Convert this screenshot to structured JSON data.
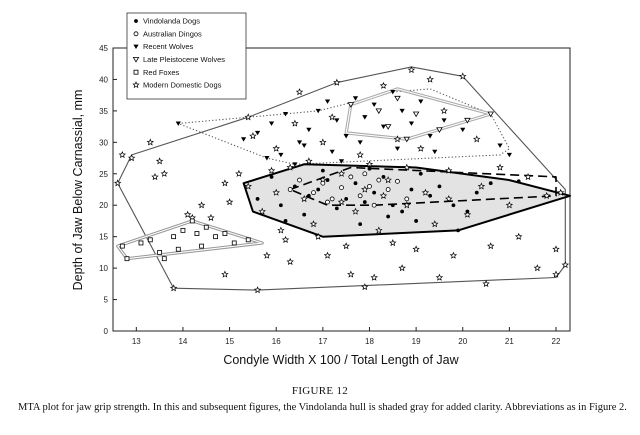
{
  "figure": {
    "title": "FIGURE 12",
    "caption": "MTA plot for jaw grip strength. In this and subsequent figures, the Vindolanda hull is shaded gray for added clarity.  Abbreviations as in Figure 2."
  },
  "chart_data": {
    "type": "scatter",
    "xlabel": "Condyle Width X 100 / Total Length of Jaw",
    "ylabel": "Depth of Jaw Below Carnassial, mm",
    "xlim": [
      12.5,
      22.3
    ],
    "ylim": [
      0,
      45
    ],
    "xticks": [
      "13",
      "14",
      "15",
      "16",
      "17",
      "18",
      "19",
      "20",
      "21",
      "22"
    ],
    "yticks": [
      "0",
      "5",
      "10",
      "15",
      "20",
      "25",
      "30",
      "35",
      "40",
      "45"
    ],
    "legend_position": "top-left",
    "series": [
      {
        "name": "Vindolanda Dogs",
        "marker": "filled-circle",
        "color": "#000000",
        "points": [
          [
            15.6,
            21.0
          ],
          [
            15.9,
            24.5
          ],
          [
            16.1,
            20.0
          ],
          [
            16.4,
            23.0
          ],
          [
            16.7,
            21.5
          ],
          [
            16.9,
            22.5
          ],
          [
            17.1,
            24.0
          ],
          [
            17.3,
            19.5
          ],
          [
            17.5,
            21.0
          ],
          [
            17.7,
            23.5
          ],
          [
            17.9,
            20.5
          ],
          [
            18.1,
            22.0
          ],
          [
            18.3,
            24.5
          ],
          [
            18.5,
            20.0
          ],
          [
            18.7,
            19.0
          ],
          [
            18.9,
            22.5
          ],
          [
            19.1,
            25.0
          ],
          [
            19.3,
            21.5
          ],
          [
            19.5,
            23.0
          ],
          [
            19.8,
            20.0
          ],
          [
            20.1,
            19.0
          ],
          [
            20.3,
            22.0
          ],
          [
            20.6,
            23.5
          ],
          [
            17.0,
            25.5
          ],
          [
            18.0,
            25.8
          ],
          [
            16.6,
            18.5
          ],
          [
            17.8,
            17.0
          ],
          [
            19.0,
            17.5
          ],
          [
            19.9,
            16.0
          ],
          [
            21.2,
            23.8
          ],
          [
            16.2,
            17.5
          ],
          [
            18.4,
            18.2
          ]
        ]
      },
      {
        "name": "Australian Dingos",
        "marker": "open-circle",
        "color": "#000000",
        "points": [
          [
            16.5,
            24.0
          ],
          [
            16.8,
            22.0
          ],
          [
            17.0,
            23.5
          ],
          [
            17.2,
            21.0
          ],
          [
            17.4,
            22.8
          ],
          [
            17.6,
            24.5
          ],
          [
            17.8,
            21.5
          ],
          [
            18.0,
            23.0
          ],
          [
            18.2,
            24.0
          ],
          [
            18.4,
            22.5
          ],
          [
            18.6,
            23.8
          ],
          [
            18.8,
            21.0
          ],
          [
            16.3,
            22.5
          ],
          [
            17.1,
            20.5
          ],
          [
            17.9,
            25.0
          ],
          [
            18.1,
            20.0
          ]
        ]
      },
      {
        "name": "Recent Wolves",
        "marker": "filled-triangle-down",
        "color": "#000000",
        "points": [
          [
            13.9,
            33.0
          ],
          [
            15.3,
            30.5
          ],
          [
            15.6,
            31.5
          ],
          [
            15.9,
            33.0
          ],
          [
            16.2,
            34.5
          ],
          [
            16.5,
            30.0
          ],
          [
            16.7,
            32.0
          ],
          [
            16.9,
            35.0
          ],
          [
            17.1,
            36.5
          ],
          [
            17.3,
            33.5
          ],
          [
            17.5,
            31.0
          ],
          [
            17.7,
            37.0
          ],
          [
            17.9,
            34.0
          ],
          [
            18.1,
            36.0
          ],
          [
            18.3,
            32.5
          ],
          [
            18.5,
            38.0
          ],
          [
            18.7,
            35.0
          ],
          [
            18.9,
            33.0
          ],
          [
            19.1,
            36.5
          ],
          [
            19.3,
            31.0
          ],
          [
            19.6,
            33.5
          ],
          [
            20.0,
            32.0
          ],
          [
            16.1,
            28.0
          ],
          [
            16.6,
            29.5
          ],
          [
            17.2,
            28.5
          ],
          [
            17.8,
            30.0
          ],
          [
            18.6,
            29.0
          ],
          [
            19.4,
            28.5
          ],
          [
            15.8,
            27.5
          ],
          [
            16.4,
            26.5
          ],
          [
            17.4,
            27.0
          ],
          [
            20.8,
            29.5
          ],
          [
            21.0,
            28.0
          ]
        ]
      },
      {
        "name": "Late Pleistocene Wolves",
        "marker": "open-triangle-down",
        "color": "#000000",
        "points": [
          [
            17.6,
            36.0
          ],
          [
            18.2,
            35.0
          ],
          [
            18.6,
            37.0
          ],
          [
            19.0,
            34.5
          ],
          [
            19.5,
            32.0
          ],
          [
            20.1,
            33.5
          ],
          [
            20.6,
            34.5
          ],
          [
            18.8,
            30.5
          ],
          [
            18.4,
            32.5
          ]
        ]
      },
      {
        "name": "Red Foxes",
        "marker": "open-square",
        "color": "#000000",
        "points": [
          [
            12.7,
            13.5
          ],
          [
            12.8,
            11.5
          ],
          [
            13.1,
            14.0
          ],
          [
            13.3,
            14.5
          ],
          [
            13.5,
            12.5
          ],
          [
            13.8,
            15.0
          ],
          [
            14.0,
            16.0
          ],
          [
            14.2,
            17.5
          ],
          [
            14.3,
            15.5
          ],
          [
            14.5,
            16.5
          ],
          [
            14.7,
            15.0
          ],
          [
            14.9,
            15.5
          ],
          [
            15.1,
            14.0
          ],
          [
            13.6,
            11.5
          ],
          [
            14.4,
            13.5
          ],
          [
            13.9,
            13.0
          ],
          [
            15.4,
            14.5
          ]
        ]
      },
      {
        "name": "Modern Domestic Dogs",
        "marker": "open-star",
        "color": "#000000",
        "points": [
          [
            12.6,
            23.5
          ],
          [
            12.7,
            28.0
          ],
          [
            12.9,
            27.5
          ],
          [
            13.3,
            30.0
          ],
          [
            13.4,
            24.5
          ],
          [
            13.6,
            25.0
          ],
          [
            13.5,
            27.0
          ],
          [
            13.8,
            6.8
          ],
          [
            14.1,
            18.5
          ],
          [
            14.2,
            18.0
          ],
          [
            14.4,
            20.0
          ],
          [
            14.6,
            18.0
          ],
          [
            14.9,
            23.5
          ],
          [
            15.0,
            20.5
          ],
          [
            14.9,
            9.0
          ],
          [
            15.2,
            25.0
          ],
          [
            15.4,
            34.0
          ],
          [
            15.5,
            31.0
          ],
          [
            15.6,
            6.5
          ],
          [
            15.7,
            19.0
          ],
          [
            15.8,
            12.0
          ],
          [
            16.0,
            29.0
          ],
          [
            16.1,
            16.0
          ],
          [
            16.2,
            14.5
          ],
          [
            16.3,
            11.0
          ],
          [
            16.4,
            33.0
          ],
          [
            16.5,
            38.0
          ],
          [
            16.7,
            27.0
          ],
          [
            16.8,
            17.0
          ],
          [
            16.9,
            15.0
          ],
          [
            17.0,
            30.0
          ],
          [
            17.1,
            12.0
          ],
          [
            17.2,
            34.0
          ],
          [
            17.3,
            39.5
          ],
          [
            17.4,
            25.0
          ],
          [
            17.5,
            13.5
          ],
          [
            17.6,
            9.0
          ],
          [
            17.7,
            19.0
          ],
          [
            17.8,
            28.0
          ],
          [
            17.9,
            7.0
          ],
          [
            18.0,
            26.5
          ],
          [
            18.1,
            8.5
          ],
          [
            18.2,
            16.0
          ],
          [
            18.3,
            39.0
          ],
          [
            18.4,
            24.0
          ],
          [
            18.5,
            14.0
          ],
          [
            18.6,
            30.5
          ],
          [
            18.7,
            10.0
          ],
          [
            18.8,
            26.0
          ],
          [
            18.9,
            41.5
          ],
          [
            19.0,
            13.0
          ],
          [
            19.1,
            29.0
          ],
          [
            19.3,
            40.0
          ],
          [
            19.4,
            17.0
          ],
          [
            19.5,
            8.5
          ],
          [
            19.6,
            35.0
          ],
          [
            19.7,
            25.5
          ],
          [
            19.8,
            12.0
          ],
          [
            20.0,
            40.5
          ],
          [
            20.1,
            18.5
          ],
          [
            20.3,
            30.5
          ],
          [
            20.4,
            23.0
          ],
          [
            20.5,
            7.5
          ],
          [
            20.6,
            13.5
          ],
          [
            20.8,
            26.0
          ],
          [
            21.0,
            20.0
          ],
          [
            21.2,
            15.0
          ],
          [
            21.4,
            24.5
          ],
          [
            21.6,
            10.0
          ],
          [
            21.8,
            21.5
          ],
          [
            22.0,
            9.0
          ],
          [
            22.1,
            22.0
          ],
          [
            22.2,
            10.5
          ],
          [
            22.0,
            13.0
          ],
          [
            16.0,
            22.0
          ],
          [
            16.6,
            21.0
          ],
          [
            17.0,
            24.0
          ],
          [
            17.4,
            20.5
          ],
          [
            17.9,
            22.5
          ],
          [
            18.3,
            21.5
          ],
          [
            18.8,
            20.0
          ],
          [
            19.2,
            22.0
          ],
          [
            19.7,
            21.0
          ],
          [
            16.3,
            26.0
          ],
          [
            15.4,
            23.0
          ],
          [
            15.9,
            25.5
          ]
        ]
      }
    ],
    "hulls": [
      {
        "group": "Modern Domestic Dogs",
        "stroke": "#555555",
        "style": "solid",
        "points": [
          [
            12.6,
            23.5
          ],
          [
            12.9,
            28.0
          ],
          [
            15.4,
            34.0
          ],
          [
            17.3,
            39.5
          ],
          [
            18.9,
            42.0
          ],
          [
            20.0,
            40.5
          ],
          [
            22.2,
            22.5
          ],
          [
            22.2,
            10.5
          ],
          [
            22.0,
            8.5
          ],
          [
            15.6,
            6.5
          ],
          [
            13.8,
            6.8
          ]
        ]
      },
      {
        "group": "Recent Wolves",
        "stroke": "#555555",
        "style": "dotted",
        "points": [
          [
            13.9,
            33.0
          ],
          [
            16.9,
            35.0
          ],
          [
            18.5,
            38.0
          ],
          [
            19.3,
            38.5
          ],
          [
            20.6,
            34.5
          ],
          [
            21.0,
            29.0
          ],
          [
            20.8,
            28.0
          ],
          [
            16.4,
            26.5
          ],
          [
            15.8,
            27.5
          ]
        ]
      },
      {
        "group": "Late Pleistocene Wolves",
        "stroke": "#aaaaaa",
        "style": "double",
        "points": [
          [
            17.6,
            36.0
          ],
          [
            18.6,
            38.5
          ],
          [
            20.6,
            34.5
          ],
          [
            18.8,
            30.5
          ],
          [
            17.5,
            31.5
          ]
        ]
      },
      {
        "group": "Vindolanda Dogs",
        "stroke": "#000000",
        "style": "solid",
        "shaded": true,
        "fill": "#e3e3e3",
        "points": [
          [
            15.3,
            23.5
          ],
          [
            16.6,
            26.5
          ],
          [
            19.0,
            26.0
          ],
          [
            21.0,
            24.0
          ],
          [
            22.3,
            21.5
          ],
          [
            19.9,
            16.0
          ],
          [
            17.0,
            15.0
          ],
          [
            15.5,
            19.0
          ]
        ]
      },
      {
        "group": "Australian Dingos",
        "stroke": "#000000",
        "style": "dashed",
        "points": [
          [
            16.3,
            22.5
          ],
          [
            17.6,
            26.0
          ],
          [
            22.0,
            24.5
          ],
          [
            22.0,
            21.5
          ],
          [
            18.1,
            20.0
          ],
          [
            17.1,
            20.0
          ]
        ]
      },
      {
        "group": "Red Foxes",
        "stroke": "#999999",
        "style": "double",
        "points": [
          [
            12.6,
            13.5
          ],
          [
            14.2,
            17.5
          ],
          [
            15.7,
            14.0
          ],
          [
            12.8,
            11.5
          ]
        ]
      }
    ]
  }
}
